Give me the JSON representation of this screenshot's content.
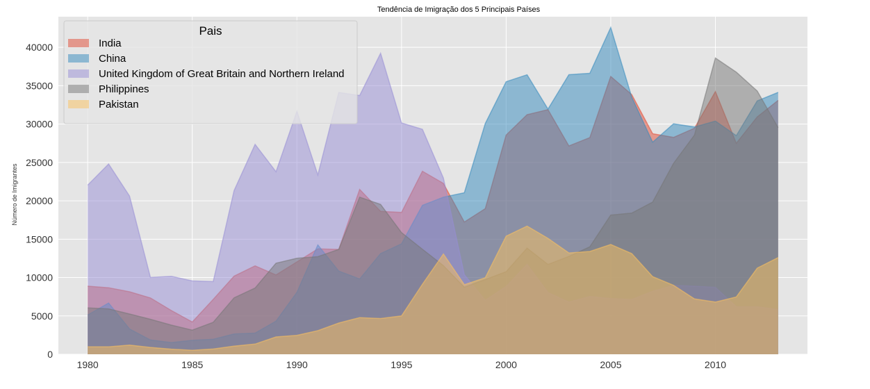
{
  "chart_data": {
    "type": "area",
    "title": "Tendência de Imigração dos 5 Principais Países",
    "ylabel": "Número de Imigrantes",
    "xlabel": "",
    "legend_title": "Pais",
    "legend_placement": "top-left",
    "grid": true,
    "stacked": false,
    "xlim": [
      1978.6,
      2014.4
    ],
    "ylim": [
      0,
      44000
    ],
    "x_ticks": [
      1980,
      1985,
      1990,
      1995,
      2000,
      2005,
      2010
    ],
    "y_ticks": [
      0,
      5000,
      10000,
      15000,
      20000,
      25000,
      30000,
      35000,
      40000
    ],
    "x_tick_labels": [
      "1980",
      "1985",
      "1990",
      "1995",
      "2000",
      "2005",
      "2010"
    ],
    "y_tick_labels": [
      "0",
      "5000",
      "10000",
      "15000",
      "20000",
      "25000",
      "30000",
      "35000",
      "40000"
    ],
    "x": [
      1980,
      1981,
      1982,
      1983,
      1984,
      1985,
      1986,
      1987,
      1988,
      1989,
      1990,
      1991,
      1992,
      1993,
      1994,
      1995,
      1996,
      1997,
      1998,
      1999,
      2000,
      2001,
      2002,
      2003,
      2004,
      2005,
      2006,
      2007,
      2008,
      2009,
      2010,
      2011,
      2012,
      2013
    ],
    "series": [
      {
        "name": "India",
        "color": "#e24a33",
        "values": [
          8880,
          8670,
          8147,
          7338,
          5704,
          4211,
          7150,
          10189,
          11522,
          10343,
          12041,
          13734,
          13673,
          21496,
          18620,
          18489,
          23859,
          22268,
          17241,
          18974,
          28572,
          31223,
          31889,
          27155,
          28235,
          36210,
          33848,
          28742,
          28261,
          29456,
          34235,
          27509,
          30933,
          33087
        ]
      },
      {
        "name": "China",
        "color": "#348abd",
        "values": [
          5123,
          6682,
          3308,
          1863,
          1527,
          1816,
          1960,
          2643,
          2758,
          4323,
          8076,
          14255,
          10846,
          9817,
          13128,
          14398,
          19415,
          20475,
          21049,
          30069,
          35529,
          36434,
          31961,
          36439,
          36619,
          42584,
          33518,
          27642,
          30037,
          29622,
          30391,
          28502,
          33024,
          34129
        ]
      },
      {
        "name": "United Kingdom of Great Britain and Northern Ireland",
        "color": "#988ed5",
        "values": [
          22045,
          24796,
          20620,
          10015,
          10170,
          9564,
          9470,
          21337,
          27359,
          23795,
          31668,
          23380,
          34123,
          33720,
          39231,
          30145,
          29322,
          22965,
          10367,
          7045,
          8840,
          11728,
          8046,
          6797,
          7533,
          7258,
          7140,
          8216,
          8979,
          8876,
          8724,
          6204,
          6195,
          5827
        ]
      },
      {
        "name": "Philippines",
        "color": "#777777",
        "values": [
          6051,
          5921,
          5249,
          4562,
          3801,
          3150,
          4166,
          7360,
          8639,
          11865,
          12509,
          12718,
          13670,
          20479,
          19532,
          15864,
          13692,
          11549,
          8735,
          9734,
          10763,
          13836,
          11707,
          12758,
          14004,
          18139,
          18400,
          19837,
          24887,
          28573,
          38617,
          36765,
          34315,
          29544
        ]
      },
      {
        "name": "Pakistan",
        "color": "#fbc15e",
        "values": [
          978,
          972,
          1201,
          900,
          668,
          514,
          691,
          1072,
          1334,
          2261,
          2470,
          3079,
          4071,
          4777,
          4666,
          4994,
          9125,
          13073,
          9068,
          9979,
          15400,
          16708,
          15110,
          13205,
          13399,
          14314,
          13127,
          10124,
          8994,
          7217,
          6811,
          7468,
          11227,
          12603
        ]
      }
    ]
  }
}
